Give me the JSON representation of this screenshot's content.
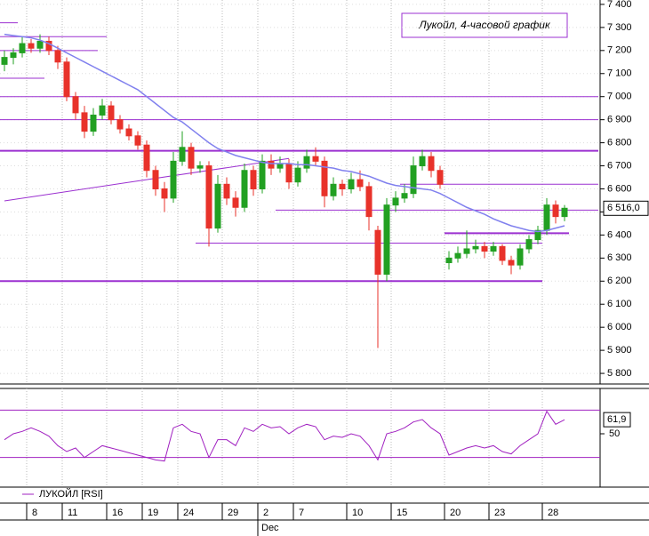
{
  "chart_data": [
    {
      "type": "candlestick",
      "title": "Лукойл, 4-часовой график",
      "categories": [
        null,
        null,
        null,
        "8",
        null,
        null,
        null,
        "11",
        null,
        null,
        null,
        null,
        "16",
        null,
        null,
        null,
        "19",
        null,
        null,
        null,
        "24",
        null,
        null,
        null,
        null,
        "29",
        null,
        null,
        null,
        "2",
        null,
        null,
        null,
        "7",
        null,
        null,
        null,
        null,
        null,
        "10",
        null,
        null,
        null,
        null,
        "15",
        null,
        null,
        null,
        null,
        null,
        "20",
        null,
        null,
        null,
        null,
        "23",
        null,
        null,
        null,
        null,
        null,
        "28",
        null,
        null
      ],
      "open": [
        7140,
        7170,
        7190,
        7230,
        7210,
        7240,
        7200,
        7150,
        7000,
        6930,
        6850,
        6920,
        6960,
        6900,
        6860,
        6830,
        6790,
        6680,
        6600,
        6560,
        6720,
        6780,
        6690,
        6700,
        6430,
        6620,
        6560,
        6520,
        6680,
        6600,
        6720,
        6690,
        6710,
        6630,
        6690,
        6740,
        6720,
        6570,
        6620,
        6600,
        6640,
        6610,
        6420,
        6230,
        6530,
        6560,
        6580,
        6700,
        6740,
        6680,
        6280,
        6300,
        6320,
        6340,
        6350,
        6330,
        6350,
        6290,
        6270,
        6340,
        6380,
        6420,
        6530,
        6480
      ],
      "high": [
        7200,
        7210,
        7260,
        7250,
        7270,
        7260,
        7220,
        7170,
        7020,
        6960,
        6950,
        6990,
        6980,
        6920,
        6880,
        6850,
        6810,
        6700,
        6630,
        6760,
        6850,
        6800,
        6720,
        6720,
        6660,
        6650,
        6590,
        6710,
        6700,
        6750,
        6750,
        6740,
        6730,
        6720,
        6770,
        6780,
        6740,
        6650,
        6640,
        6670,
        6680,
        6630,
        6440,
        6560,
        6590,
        6620,
        6740,
        6770,
        6760,
        6700,
        6330,
        6350,
        6420,
        6380,
        6370,
        6370,
        6360,
        6310,
        6360,
        6400,
        6440,
        6560,
        6550,
        6530
      ],
      "low": [
        7110,
        7140,
        7170,
        7190,
        7190,
        7180,
        7120,
        6980,
        6900,
        6820,
        6830,
        6900,
        6880,
        6840,
        6810,
        6770,
        6650,
        6570,
        6500,
        6540,
        6700,
        6660,
        6670,
        6350,
        6410,
        6530,
        6480,
        6500,
        6570,
        6580,
        6660,
        6670,
        6600,
        6610,
        6670,
        6700,
        6520,
        6550,
        6570,
        6580,
        6590,
        6420,
        5910,
        6200,
        6500,
        6540,
        6560,
        6680,
        6650,
        6600,
        6250,
        6280,
        6300,
        6320,
        6300,
        6310,
        6270,
        6230,
        6250,
        6320,
        6360,
        6400,
        6450,
        6460
      ],
      "close": [
        7170,
        7190,
        7230,
        7210,
        7240,
        7200,
        7150,
        7000,
        6930,
        6850,
        6920,
        6960,
        6900,
        6860,
        6830,
        6790,
        6680,
        6600,
        6560,
        6720,
        6780,
        6690,
        6700,
        6430,
        6620,
        6560,
        6520,
        6680,
        6600,
        6720,
        6690,
        6710,
        6630,
        6690,
        6740,
        6720,
        6570,
        6620,
        6600,
        6640,
        6610,
        6480,
        6230,
        6530,
        6560,
        6580,
        6700,
        6740,
        6680,
        6620,
        6300,
        6320,
        6340,
        6350,
        6330,
        6350,
        6290,
        6270,
        6340,
        6380,
        6420,
        6530,
        6480,
        6516
      ],
      "up_color": "#22a022",
      "down_color": "#e8322a",
      "last_label": "6 516,0",
      "ma": {
        "color": "#8080ee",
        "values": [
          7270,
          7265,
          7260,
          7255,
          7245,
          7230,
          7210,
          7190,
          7170,
          7150,
          7130,
          7110,
          7090,
          7070,
          7050,
          7030,
          7000,
          6970,
          6940,
          6910,
          6890,
          6860,
          6830,
          6800,
          6775,
          6760,
          6745,
          6735,
          6725,
          6715,
          6710,
          6710,
          6710,
          6705,
          6705,
          6700,
          6695,
          6690,
          6680,
          6675,
          6665,
          6655,
          6640,
          6625,
          6615,
          6610,
          6605,
          6600,
          6595,
          6580,
          6560,
          6540,
          6520,
          6505,
          6490,
          6470,
          6455,
          6440,
          6430,
          6420,
          6415,
          6420,
          6430,
          6440
        ]
      },
      "level_color": "#9b30d0",
      "levels": [
        {
          "value": 7320,
          "from": 0,
          "to": 1,
          "thick": false
        },
        {
          "value": 7260,
          "from": 0,
          "to": 11,
          "thick": false
        },
        {
          "value": 7200,
          "from": 0,
          "to": 10,
          "thick": false
        },
        {
          "value": 7080,
          "from": 0,
          "to": 4,
          "thick": false
        },
        {
          "value": 7000,
          "from": 0,
          "to": 67,
          "thick": false
        },
        {
          "value": 6900,
          "from": 0,
          "to": 67,
          "thick": false
        },
        {
          "value": 6765,
          "from": 0,
          "to": 67,
          "thick": true
        },
        {
          "value": 6620,
          "from": 45,
          "to": 67,
          "thick": false
        },
        {
          "value": 6508,
          "from": 31,
          "to": 67,
          "thick": false
        },
        {
          "value": 6408,
          "from": 50,
          "to": 63,
          "thick": true
        },
        {
          "value": 6365,
          "from": 22,
          "to": 60,
          "thick": false
        },
        {
          "value": 6200,
          "from": 0,
          "to": 60,
          "thick": true
        }
      ],
      "trendline": {
        "from": 0,
        "to": 32,
        "start_value": 6548,
        "end_value": 6732
      },
      "ylim": [
        5754,
        7419
      ],
      "yticks": [
        {
          "value": 5800,
          "label": "5 800"
        },
        {
          "value": 5900,
          "label": "5 900"
        },
        {
          "value": 6000,
          "label": "6 000"
        },
        {
          "value": 6100,
          "label": "6 100"
        },
        {
          "value": 6200,
          "label": "6 200"
        },
        {
          "value": 6300,
          "label": "6 300"
        },
        {
          "value": 6400,
          "label": "6 400"
        },
        {
          "value": 6500,
          "label": "6 500"
        },
        {
          "value": 6600,
          "label": "6 600"
        },
        {
          "value": 6700,
          "label": "6 700"
        },
        {
          "value": 6800,
          "label": "6 800"
        },
        {
          "value": 6900,
          "label": "6 900"
        },
        {
          "value": 7000,
          "label": "7 000"
        },
        {
          "value": 7100,
          "label": "7 100"
        },
        {
          "value": 7200,
          "label": "7 200"
        },
        {
          "value": 7300,
          "label": "7 300"
        },
        {
          "value": 7400,
          "label": "7 400"
        }
      ],
      "month": "Dec"
    },
    {
      "type": "line",
      "name": "ЛУКОЙЛ [RSI]",
      "color": "#a020c0",
      "values": [
        45,
        50,
        52,
        55,
        52,
        48,
        40,
        35,
        38,
        30,
        35,
        40,
        38,
        36,
        34,
        32,
        30,
        28,
        27,
        55,
        58,
        52,
        50,
        30,
        45,
        45,
        40,
        55,
        52,
        58,
        55,
        56,
        50,
        55,
        58,
        56,
        45,
        48,
        47,
        50,
        48,
        40,
        28,
        50,
        52,
        55,
        60,
        62,
        55,
        50,
        32,
        35,
        38,
        40,
        38,
        40,
        35,
        33,
        40,
        45,
        50,
        69,
        58,
        61.9
      ],
      "last_label": "61,9",
      "levels": [
        30,
        70
      ],
      "ylim": [
        5,
        86
      ],
      "yticks": [
        50
      ]
    }
  ]
}
